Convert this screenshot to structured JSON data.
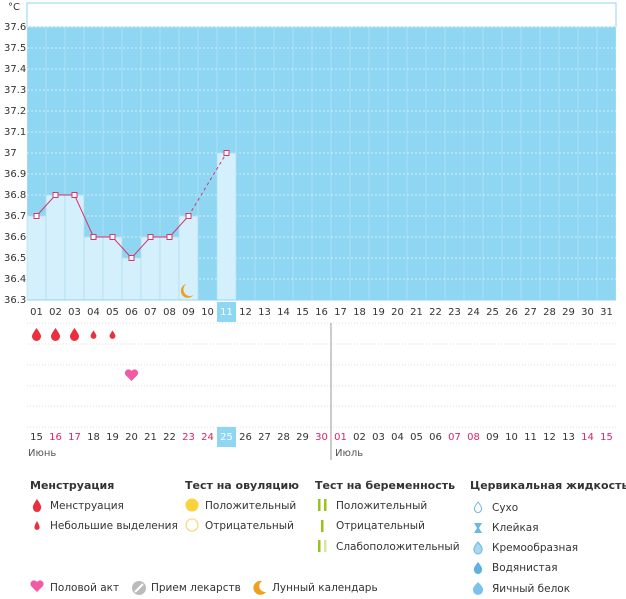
{
  "chart_data": {
    "type": "line",
    "unit": "°C",
    "categories": [
      "01",
      "02",
      "03",
      "04",
      "05",
      "06",
      "07",
      "08",
      "09",
      "10",
      "11",
      "12",
      "13",
      "14",
      "15",
      "16",
      "17",
      "18",
      "19",
      "20",
      "21",
      "22",
      "23",
      "24",
      "25",
      "26",
      "27",
      "28",
      "29",
      "30",
      "31"
    ],
    "values": [
      36.7,
      36.8,
      36.8,
      36.6,
      36.6,
      36.5,
      36.6,
      36.6,
      36.7,
      null,
      37,
      null,
      null,
      null,
      null,
      null,
      null,
      null,
      null,
      null,
      null,
      null,
      null,
      null,
      null,
      null,
      null,
      null,
      null,
      null,
      null
    ],
    "ylim": [
      36.3,
      37.6
    ],
    "yticks": [
      36.3,
      36.4,
      36.5,
      36.6,
      36.7,
      36.8,
      36.9,
      37,
      37.1,
      37.2,
      37.3,
      37.4,
      37.5,
      37.6
    ],
    "grid": true,
    "color": "#d8336a",
    "background": "#8fd6f2",
    "bar_color": "#d4f0fc",
    "current_day": "11",
    "current_cycle_day": "25",
    "cycle_days": [
      "15",
      "16",
      "17",
      "18",
      "19",
      "20",
      "21",
      "22",
      "23",
      "24",
      "25",
      "26",
      "27",
      "28",
      "29",
      "30",
      "01",
      "02",
      "03",
      "04",
      "05",
      "06",
      "07",
      "08",
      "09",
      "10",
      "11",
      "12",
      "13",
      "14",
      "15"
    ],
    "cycle_day_colors": [
      "#333",
      "#e0245e",
      "#e0245e",
      "#333",
      "#333",
      "#333",
      "#333",
      "#333",
      "#e0245e",
      "#e0245e",
      "#fff",
      "#333",
      "#333",
      "#333",
      "#333",
      "#e0245e",
      "#e0245e",
      "#333",
      "#333",
      "#333",
      "#333",
      "#333",
      "#e0245e",
      "#e0245e",
      "#333",
      "#333",
      "#333",
      "#333",
      "#333",
      "#e0245e",
      "#e0245e"
    ],
    "months": [
      "Июнь",
      "Июль"
    ],
    "menstruation_heavy": [
      "01",
      "02",
      "03"
    ],
    "menstruation_light": [
      "04",
      "05"
    ],
    "intercourse": [
      "06"
    ],
    "lunar": [
      "09"
    ]
  },
  "legend": {
    "menstruation": {
      "title": "Менструация",
      "items": [
        "Менструация",
        "Небольшие выделения"
      ]
    },
    "ovulation_test": {
      "title": "Тест на овуляцию",
      "items": [
        "Положительный",
        "Отрицательный"
      ]
    },
    "pregnancy_test": {
      "title": "Тест на беременность",
      "items": [
        "Положительный",
        "Отрицательный",
        "Слабоположительный"
      ]
    },
    "cervical_fluid": {
      "title": "Цервикальная жидкость",
      "items": [
        "Сухо",
        "Клейкая",
        "Кремообразная",
        "Водянистая",
        "Яичный белок"
      ]
    },
    "other": [
      "Половой акт",
      "Прием лекарств",
      "Лунный календарь"
    ]
  }
}
